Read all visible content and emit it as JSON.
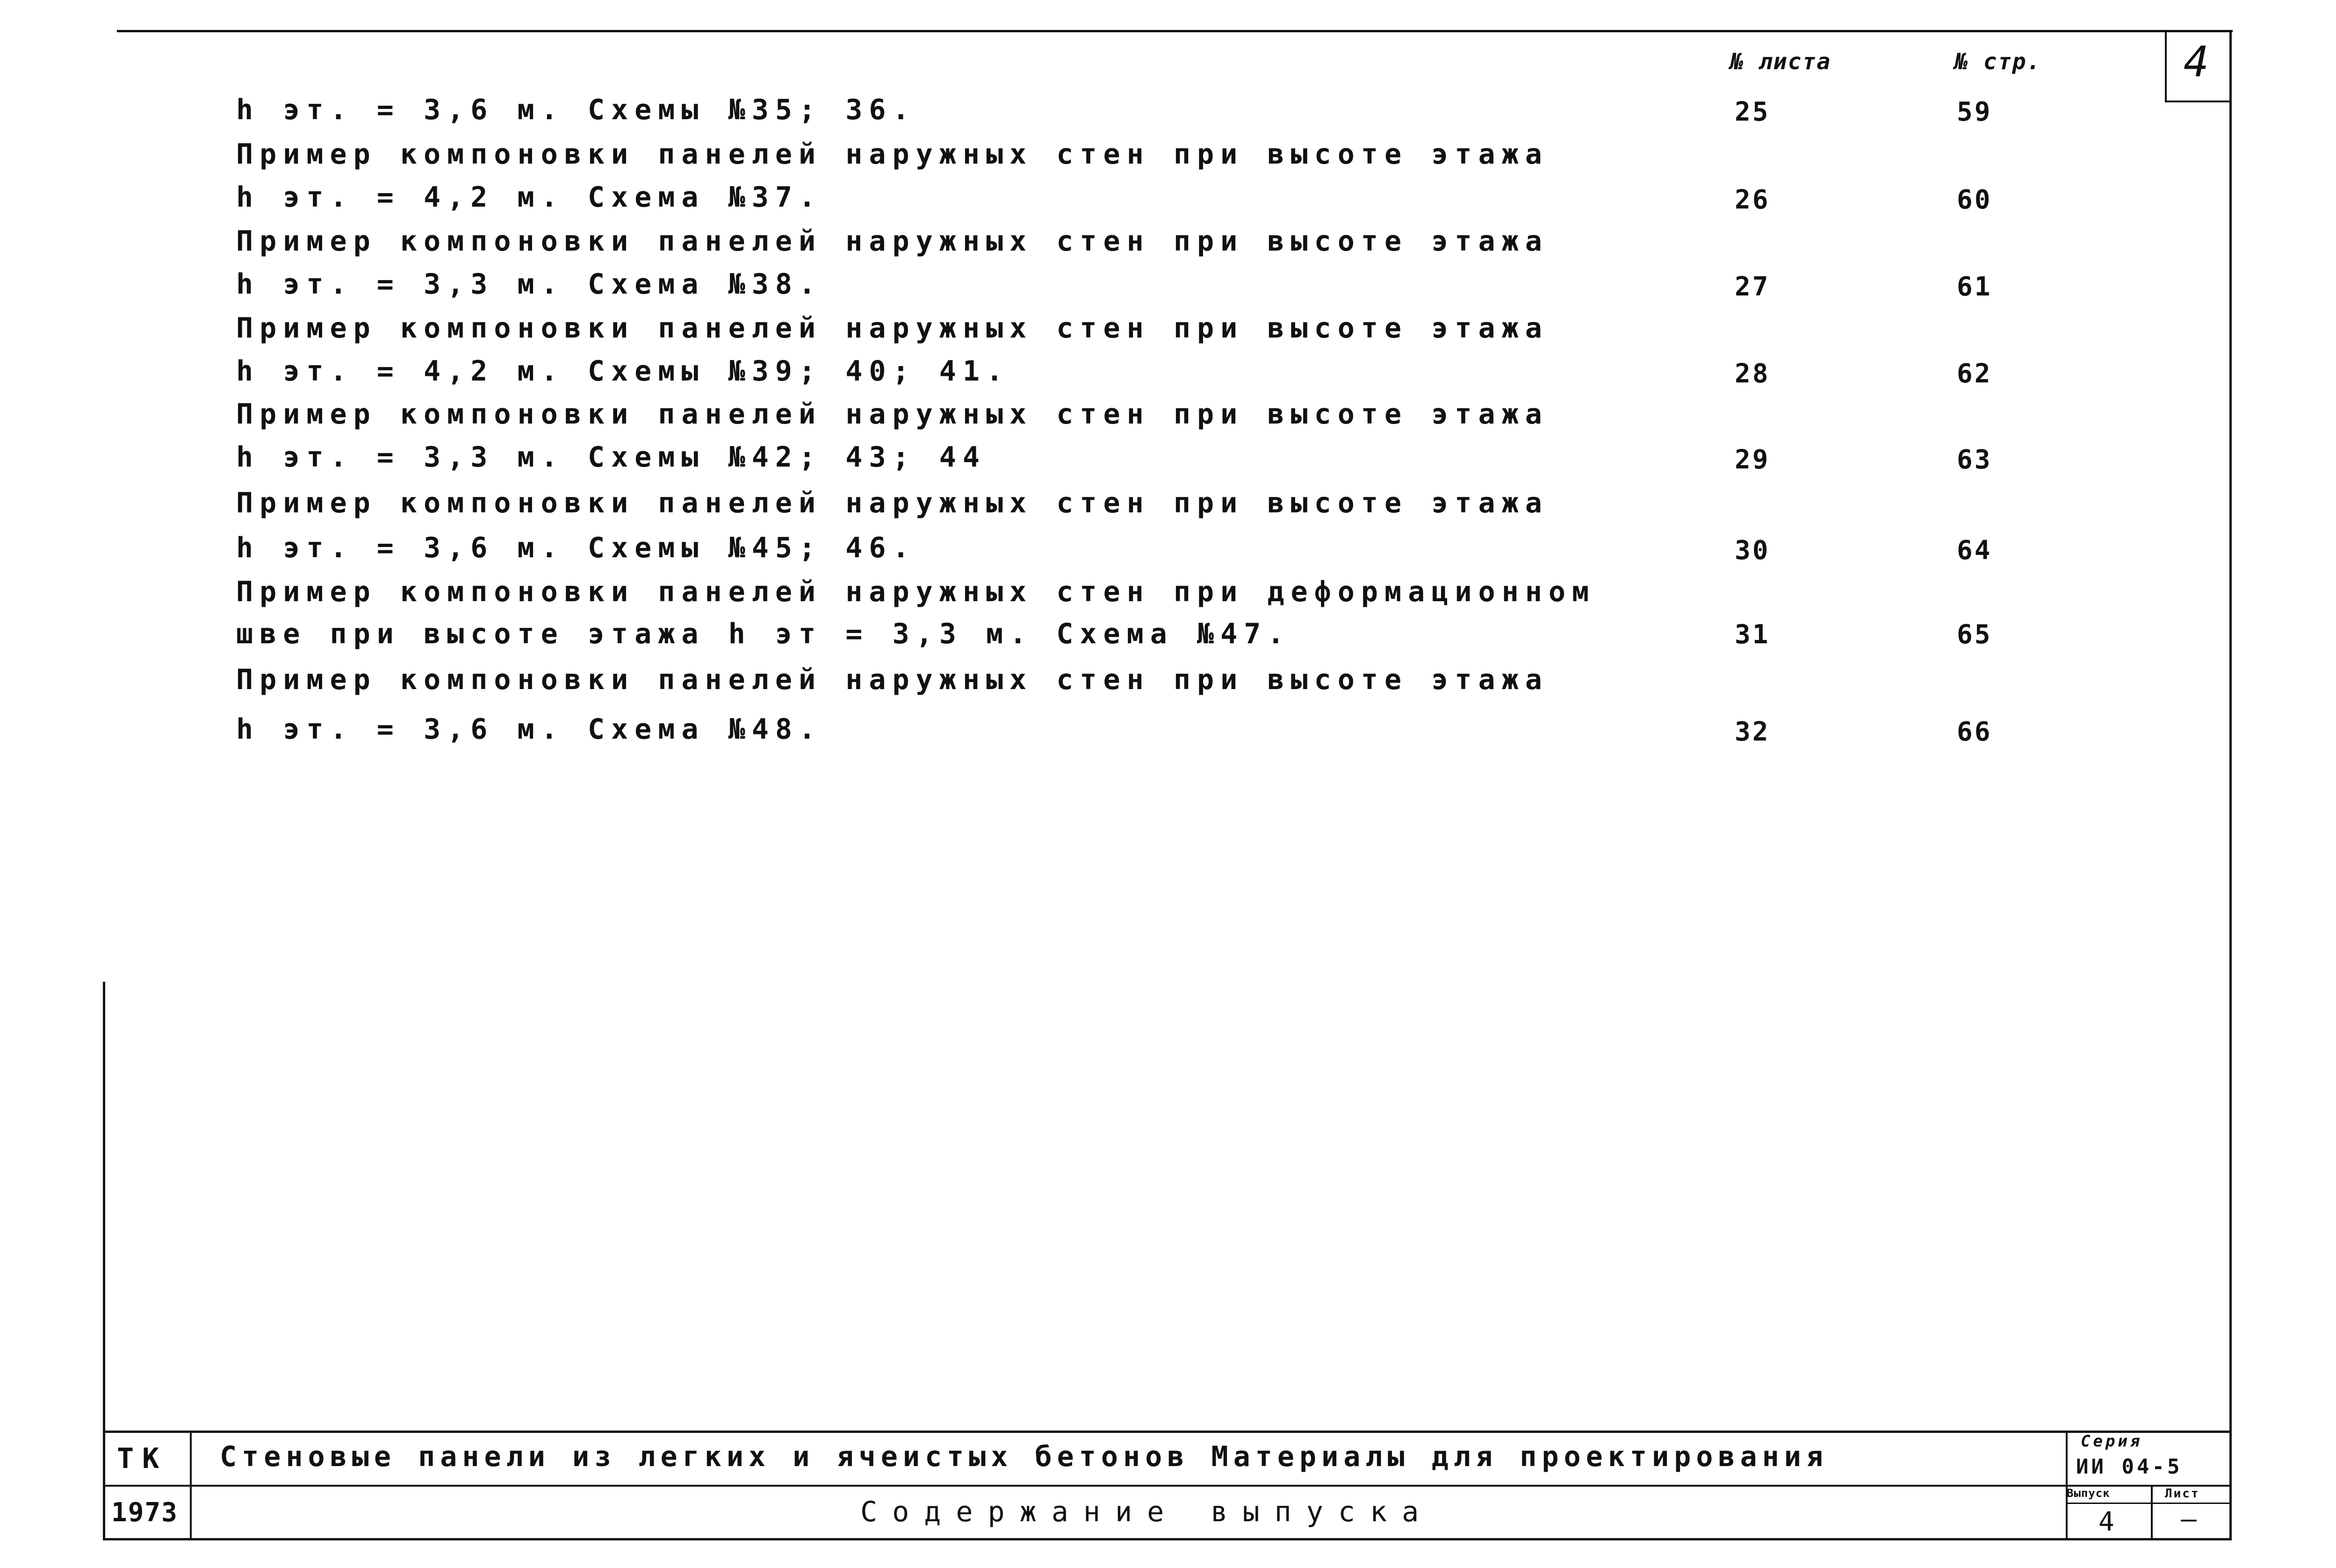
{
  "header": {
    "sheet_col_label": "№ листа",
    "page_col_label": "№ стр.",
    "corner_number": "4"
  },
  "entries": [
    {
      "lines": [
        "h эт. = 3,6 м. Схемы №35; 36."
      ],
      "sheet": "25",
      "page": "59"
    },
    {
      "lines": [
        "Пример компоновки панелей наружных стен при высоте этажа",
        "h эт. = 4,2 м. Схема №37."
      ],
      "sheet": "26",
      "page": "60"
    },
    {
      "lines": [
        "Пример компоновки панелей наружных стен при высоте этажа",
        "h эт. = 3,3 м. Схема №38."
      ],
      "sheet": "27",
      "page": "61"
    },
    {
      "lines": [
        "Пример компоновки панелей наружных стен при высоте этажа",
        "h эт. = 4,2 м. Схемы №39; 40; 41."
      ],
      "sheet": "28",
      "page": "62"
    },
    {
      "lines": [
        "Пример компоновки панелей наружных стен при высоте этажа",
        "h эт. = 3,3 м. Схемы №42; 43; 44"
      ],
      "sheet": "29",
      "page": "63"
    },
    {
      "lines": [
        "Пример компоновки панелей наружных стен при высоте этажа",
        "h эт. = 3,6 м. Схемы №45; 46."
      ],
      "sheet": "30",
      "page": "64"
    },
    {
      "lines": [
        "Пример компоновки панелей наружных стен при деформационном",
        "шве при высоте этажа h эт = 3,3 м. Схема №47."
      ],
      "sheet": "31",
      "page": "65"
    },
    {
      "lines": [
        "Пример компоновки панелей наружных стен при высоте этажа",
        "h эт. = 3,6 м. Схема №48."
      ],
      "sheet": "32",
      "page": "66"
    }
  ],
  "title_block": {
    "code": "ТК",
    "year": "1973",
    "title": "Стеновые панели из легких и ячеистых бетонов Материалы для проектирования",
    "subtitle": "Содержание выпуска",
    "series_label": "Серия",
    "series_value": "ИИ 04-5",
    "issue_label": "Выпуск",
    "issue_value": "4",
    "sheet_label": "Лист",
    "sheet_value": "—"
  }
}
